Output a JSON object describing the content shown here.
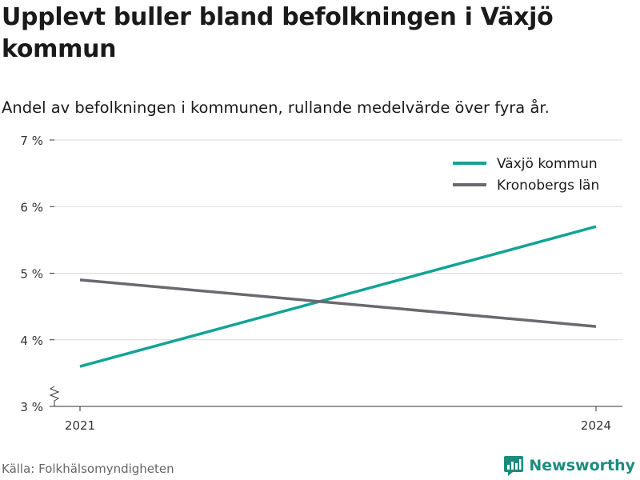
{
  "title": "Upplevt buller bland befolkningen i Växjö kommun",
  "subtitle": "Andel av befolkningen i kommunen, rullande medelvärde över fyra år.",
  "source": "Källa: Folkhälsomyndigheten",
  "brand": {
    "name": "Newsworthy",
    "icon": "newsworthy-logo-icon"
  },
  "colors": {
    "vaxjo": "#13a395",
    "kronoberg": "#6b6870",
    "grid": "#d9d9d9",
    "axis": "#333333"
  },
  "chart_data": {
    "type": "line",
    "x": [
      "2021",
      "2024"
    ],
    "xlim": [
      2021,
      2024
    ],
    "ylim": [
      3,
      7
    ],
    "yticks": [
      3,
      4,
      5,
      6,
      7
    ],
    "ytick_labels": [
      "3 %",
      "4 %",
      "5 %",
      "6 %",
      "7 %"
    ],
    "xtick_labels": [
      "2021",
      "2024"
    ],
    "axis_break": true,
    "grid": true,
    "legend_position": "top-right",
    "series": [
      {
        "name": "Växjö kommun",
        "color": "#13a395",
        "x": [
          2021,
          2024
        ],
        "values": [
          3.6,
          5.7
        ]
      },
      {
        "name": "Kronobergs län",
        "color": "#6b6870",
        "x": [
          2021,
          2024
        ],
        "values": [
          4.9,
          4.2
        ]
      }
    ]
  }
}
